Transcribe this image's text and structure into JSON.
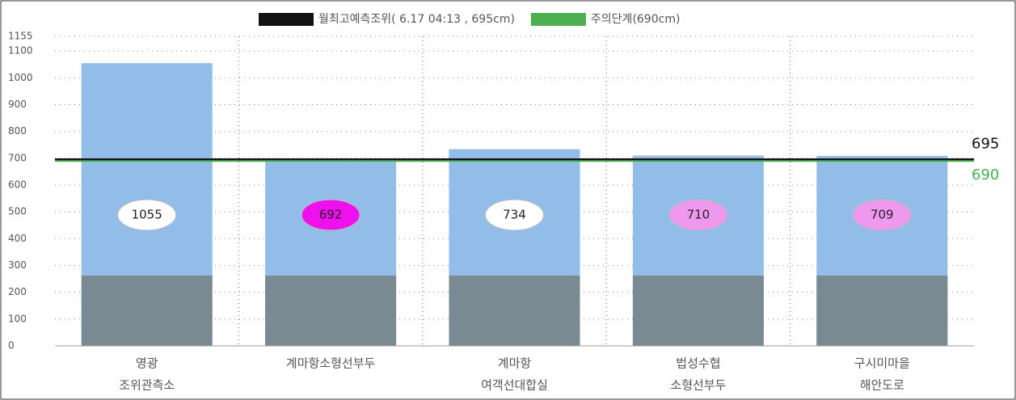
{
  "chart_data": {
    "type": "bar",
    "categories": [
      [
        "영광",
        "조위관측소"
      ],
      [
        "계마항소형선부두",
        ""
      ],
      [
        "계마항",
        "여객선대합실"
      ],
      [
        "법성수협",
        "소형선부두"
      ],
      [
        "구시미마을",
        "해안도로"
      ]
    ],
    "values": [
      1055,
      692,
      734,
      710,
      709
    ],
    "color": "#92bde8",
    "label_colors": [
      "#ffffff",
      "#ee11ee",
      "#ffffff",
      "#ee99ee",
      "#ee99ee"
    ],
    "reference_lines": [
      {
        "name": "월최고예측조위( 6.17  04:13 , 695cm)",
        "value": 695,
        "label": "695",
        "color": "#111111"
      },
      {
        "name": "주의단계(690cm)",
        "value": 690,
        "label": "690",
        "color": "#4caf50"
      }
    ],
    "ylim": [
      0,
      1155
    ],
    "yticks": [
      0,
      100,
      200,
      300,
      400,
      500,
      600,
      700,
      800,
      900,
      1000,
      1100,
      1155
    ],
    "grid": true
  }
}
